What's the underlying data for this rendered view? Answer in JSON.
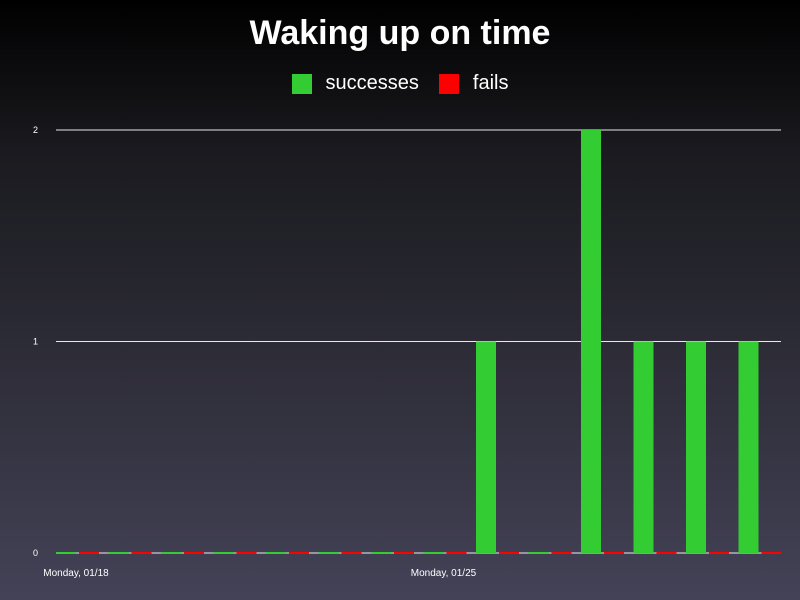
{
  "chart_data": {
    "type": "bar",
    "title": "Waking up on time",
    "legend_position": "top",
    "grid": true,
    "ylim": [
      0,
      2
    ],
    "y_ticks": [
      0,
      1,
      2
    ],
    "categories": [
      "Monday, 01/18",
      "",
      "",
      "",
      "",
      "",
      "",
      "Monday, 01/25",
      "",
      "",
      "",
      "",
      "",
      ""
    ],
    "series": [
      {
        "name": "successes",
        "color": "#33cc33",
        "values": [
          0,
          0,
          0,
          0,
          0,
          0,
          0,
          0,
          1,
          0,
          2,
          1,
          1,
          1
        ]
      },
      {
        "name": "fails",
        "color": "#ff0000",
        "values": [
          0,
          0,
          0,
          0,
          0,
          0,
          0,
          0,
          0,
          0,
          0,
          0,
          0,
          0
        ]
      }
    ]
  }
}
